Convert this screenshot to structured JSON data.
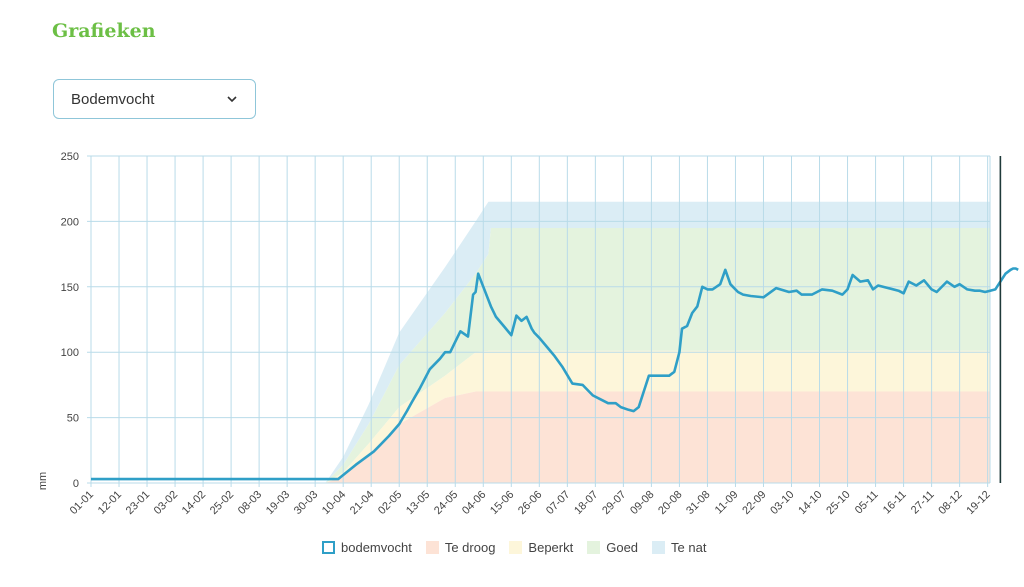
{
  "page": {
    "title": "Grafieken"
  },
  "selector": {
    "value": "Bodemvocht",
    "icon": "chevron-down-icon"
  },
  "chart_data": {
    "type": "area",
    "ylabel": "mm",
    "ylim": [
      0,
      250
    ],
    "yticks": [
      0,
      50,
      100,
      150,
      200,
      250
    ],
    "x_ticks": [
      "01-01",
      "12-01",
      "23-01",
      "03-02",
      "14-02",
      "25-02",
      "08-03",
      "19-03",
      "30-03",
      "10-04",
      "21-04",
      "02-05",
      "13-05",
      "24-05",
      "04-06",
      "15-06",
      "26-06",
      "07-07",
      "18-07",
      "29-07",
      "09-08",
      "20-08",
      "31-08",
      "11-09",
      "22-09",
      "03-10",
      "14-10",
      "25-10",
      "05-11",
      "16-11",
      "27-11",
      "08-12",
      "19-12"
    ],
    "bands": {
      "day": [
        1,
        93,
        100,
        110,
        122,
        140,
        152,
        157,
        158,
        365
      ],
      "te_droog": [
        0,
        0,
        5,
        22,
        45,
        65,
        70,
        70,
        70,
        70
      ],
      "beperkt": [
        0,
        0,
        8,
        30,
        58,
        82,
        100,
        101,
        101,
        101
      ],
      "goed": [
        0,
        0,
        14,
        45,
        90,
        130,
        160,
        175,
        195,
        195
      ],
      "te_nat": [
        0,
        0,
        20,
        60,
        115,
        165,
        200,
        215,
        215,
        215
      ]
    },
    "series": [
      {
        "name": "bodemvocht",
        "day": [
          1,
          30,
          40,
          60,
          85,
          94,
          98,
          105,
          112,
          118,
          122,
          125,
          127,
          130,
          134,
          138,
          140,
          142,
          144,
          146,
          149,
          151,
          152,
          153,
          155,
          158,
          160,
          163,
          166,
          168,
          170,
          172,
          174,
          175,
          177,
          180,
          183,
          186,
          190,
          194,
          198,
          201,
          204,
          207,
          209,
          212,
          214,
          216,
          220,
          224,
          228,
          230,
          232,
          233,
          235,
          237,
          239,
          241,
          243,
          245,
          248,
          250,
          252,
          253,
          255,
          257,
          260,
          265,
          270,
          275,
          278,
          280,
          284,
          288,
          292,
          296,
          298,
          300,
          303,
          306,
          308,
          310,
          314,
          318,
          320,
          322,
          325,
          328,
          331,
          333,
          337,
          340,
          342,
          345,
          348,
          350,
          352,
          354,
          356,
          358,
          360,
          362,
          363,
          364,
          365
        ],
        "values": [
          3,
          3,
          3,
          3,
          3,
          3,
          3,
          14,
          24,
          36,
          45,
          55,
          62,
          72,
          87,
          95,
          100,
          100,
          108,
          116,
          112,
          144,
          146,
          160,
          150,
          135,
          127,
          120,
          113,
          128,
          124,
          127,
          118,
          115,
          111,
          104,
          97,
          89,
          76,
          75,
          67,
          64,
          61,
          61,
          58,
          56,
          55,
          58,
          82,
          82,
          82,
          85,
          100,
          118,
          120,
          130,
          135,
          150,
          148,
          148,
          152,
          163,
          152,
          150,
          146,
          144,
          143,
          142,
          149,
          146,
          147,
          144,
          144,
          148,
          147,
          144,
          148,
          159,
          154,
          155,
          148,
          151,
          149,
          147,
          145,
          154,
          151,
          155,
          148,
          146,
          154,
          150,
          152,
          148,
          147,
          147,
          146,
          147,
          148,
          154,
          160,
          163,
          164,
          164,
          163
        ]
      }
    ],
    "marker_day": 358,
    "legend": [
      "bodemvocht",
      "Te droog",
      "Beperkt",
      "Goed",
      "Te nat"
    ],
    "colors": {
      "line": "#2f9fc7",
      "te_droog": "#fde3d6",
      "beperkt": "#fdf6da",
      "goed": "#e4f3de",
      "te_nat": "#dbedf5",
      "grid": "#b9dbe9",
      "marker": "#1f3a3a"
    }
  }
}
